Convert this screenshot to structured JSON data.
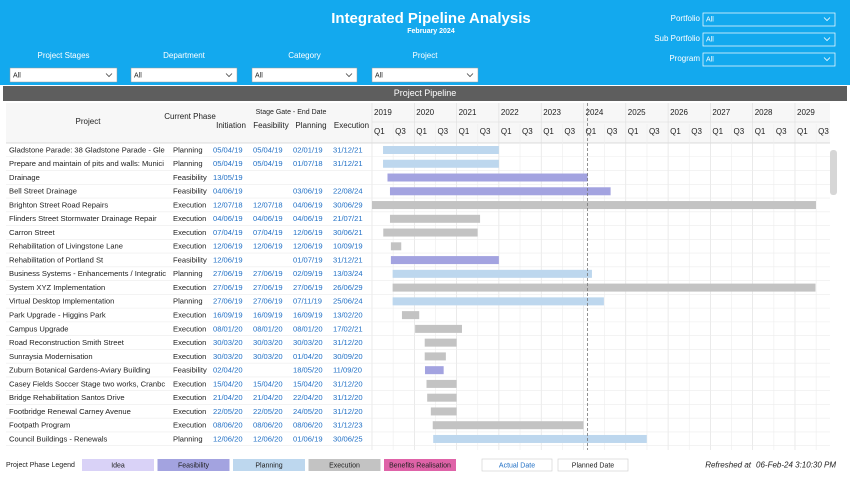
{
  "header": {
    "title": "Integrated Pipeline Analysis",
    "subtitle": "February 2024",
    "filters": [
      {
        "label": "Project Stages",
        "value": "All"
      },
      {
        "label": "Department",
        "value": "All"
      },
      {
        "label": "Category",
        "value": "All"
      },
      {
        "label": "Project",
        "value": "All"
      }
    ],
    "side_filters": [
      {
        "label": "Portfolio",
        "value": "All"
      },
      {
        "label": "Sub Portfolio",
        "value": "All"
      },
      {
        "label": "Program",
        "value": "All"
      }
    ]
  },
  "section_title": "Project Pipeline",
  "table": {
    "columns": [
      "Project",
      "Current Phase",
      "Initiation",
      "Feasibility",
      "Planning",
      "Execution"
    ],
    "group_header": "Stage Gate - End Date",
    "rows": [
      [
        "Gladstone Parade: 38 Gladstone Parade - Gle",
        "Planning",
        "05/04/19",
        "05/04/19",
        "02/01/19",
        "31/12/21"
      ],
      [
        "Prepare and maintain of pits and walls: Munici",
        "Planning",
        "05/04/19",
        "05/04/19",
        "01/07/18",
        "31/12/21"
      ],
      [
        "Drainage",
        "Feasibility",
        "13/05/19",
        null,
        null,
        null
      ],
      [
        "Bell Street Drainage",
        "Feasibility",
        "04/06/19",
        null,
        "03/06/19",
        "22/08/24"
      ],
      [
        "Brighton Street Road Repairs",
        "Execution",
        "12/07/18",
        "12/07/18",
        "04/06/19",
        "30/06/29"
      ],
      [
        "Flinders Street Stormwater Drainage Repair",
        "Execution",
        "04/06/19",
        "04/06/19",
        "04/06/19",
        "21/07/21"
      ],
      [
        "Carron Street",
        "Execution",
        "07/04/19",
        "07/04/19",
        "12/06/19",
        "30/06/21"
      ],
      [
        "Rehabilitation of Livingstone Lane",
        "Execution",
        "12/06/19",
        "12/06/19",
        "12/06/19",
        "10/09/19"
      ],
      [
        "Rehabilitation of Portland St",
        "Feasibility",
        "12/06/19",
        null,
        "01/07/19",
        "31/12/21"
      ],
      [
        "Business Systems - Enhancements / Integratic",
        "Planning",
        "27/06/19",
        "27/06/19",
        "02/09/19",
        "13/03/24"
      ],
      [
        "System XYZ Implementation",
        "Execution",
        "27/06/19",
        "27/06/19",
        "27/06/19",
        "26/06/29"
      ],
      [
        "Virtual Desktop Implementation",
        "Planning",
        "27/06/19",
        "27/06/19",
        "07/11/19",
        "25/06/24"
      ],
      [
        "Park Upgrade - Higgins Park",
        "Execution",
        "16/09/19",
        "16/09/19",
        "16/09/19",
        "13/02/20"
      ],
      [
        "Campus Upgrade",
        "Execution",
        "08/01/20",
        "08/01/20",
        "08/01/20",
        "17/02/21"
      ],
      [
        "Road Reconstruction Smith Street",
        "Execution",
        "30/03/20",
        "30/03/20",
        "30/03/20",
        "31/12/20"
      ],
      [
        "Sunraysia Modernisation",
        "Execution",
        "30/03/20",
        "30/03/20",
        "01/04/20",
        "30/09/20"
      ],
      [
        "Zuburn Botanical Gardens-Aviary Building",
        "Feasibility",
        "02/04/20",
        null,
        "18/05/20",
        "11/09/20"
      ],
      [
        "Casey Fields Soccer Stage two works, Cranbc",
        "Execution",
        "15/04/20",
        "15/04/20",
        "15/04/20",
        "31/12/20"
      ],
      [
        "Bridge Rehabilitation Santos Drive",
        "Execution",
        "21/04/20",
        "21/04/20",
        "22/04/20",
        "31/12/20"
      ],
      [
        "Footbridge Renewal Carney Avenue",
        "Execution",
        "22/05/20",
        "22/05/20",
        "24/05/20",
        "31/12/20"
      ],
      [
        "Footpath Program",
        "Execution",
        "08/06/20",
        "08/06/20",
        "08/06/20",
        "31/12/23"
      ],
      [
        "Council Buildings - Renewals",
        "Planning",
        "12/06/20",
        "12/06/20",
        "01/06/19",
        "30/06/25"
      ]
    ]
  },
  "timeline": {
    "years": [
      2019,
      2020,
      2021,
      2022,
      2023,
      2024,
      2025,
      2026,
      2027,
      2028,
      2029
    ],
    "quarters": [
      "Q1",
      "Q3"
    ]
  },
  "legend": {
    "title": "Project Phase Legend",
    "phases": [
      {
        "name": "Idea",
        "color": "#d9d2f7"
      },
      {
        "name": "Feasibility",
        "color": "#a3a3e0"
      },
      {
        "name": "Planning",
        "color": "#bdd7ee"
      },
      {
        "name": "Execution",
        "color": "#c3c3c3"
      },
      {
        "name": "Benefits Realisation",
        "color": "#df63a8"
      }
    ],
    "actual": "Actual Date",
    "planned": "Planned Date"
  },
  "refreshed_label": "Refreshed at",
  "refreshed": "06-Feb-24 3:10:30 PM"
}
